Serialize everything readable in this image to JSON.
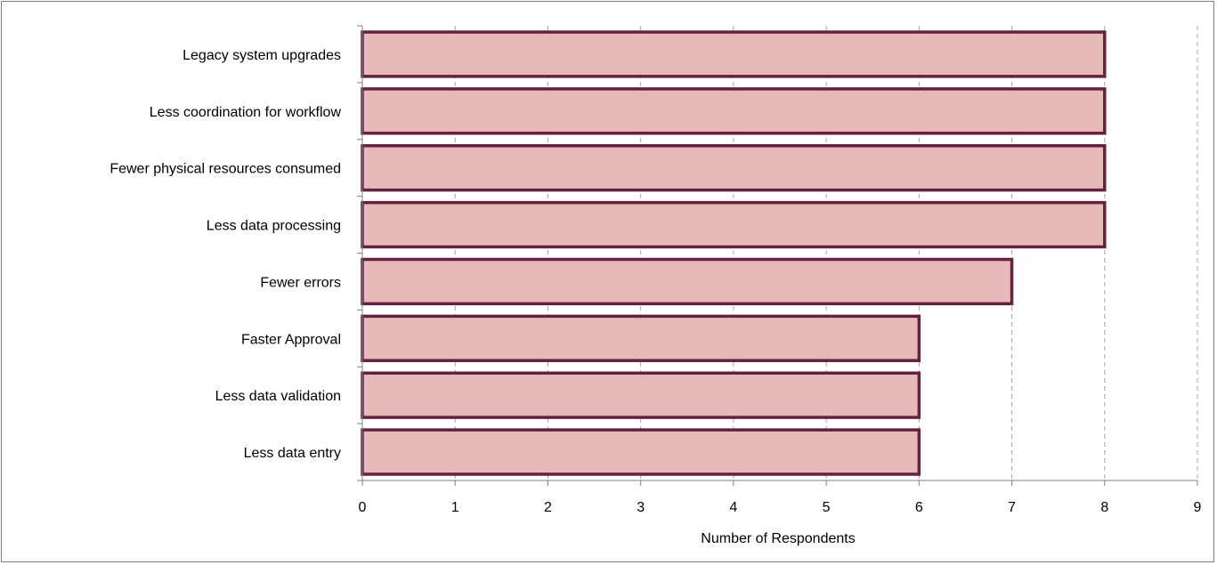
{
  "chart_data": {
    "type": "bar",
    "orientation": "horizontal",
    "title": "",
    "xlabel": "Number of Respondents",
    "ylabel": "",
    "categories": [
      "Legacy system upgrades",
      "Less coordination for workflow",
      "Fewer physical resources consumed",
      "Less data processing",
      "Fewer errors",
      "Faster Approval",
      "Less data validation",
      "Less data entry"
    ],
    "values": [
      8,
      8,
      8,
      8,
      7,
      6,
      6,
      6
    ],
    "xlim": [
      0,
      9
    ],
    "xticks": [
      "0",
      "1",
      "2",
      "3",
      "4",
      "5",
      "6",
      "7",
      "8",
      "9"
    ],
    "grid": "vertical-dashed",
    "legend": "none",
    "colors": {
      "bar_fill": "#e6b8b7",
      "bar_edge": "#632340",
      "grid": "#a6a6a6",
      "axis": "#808080"
    }
  }
}
